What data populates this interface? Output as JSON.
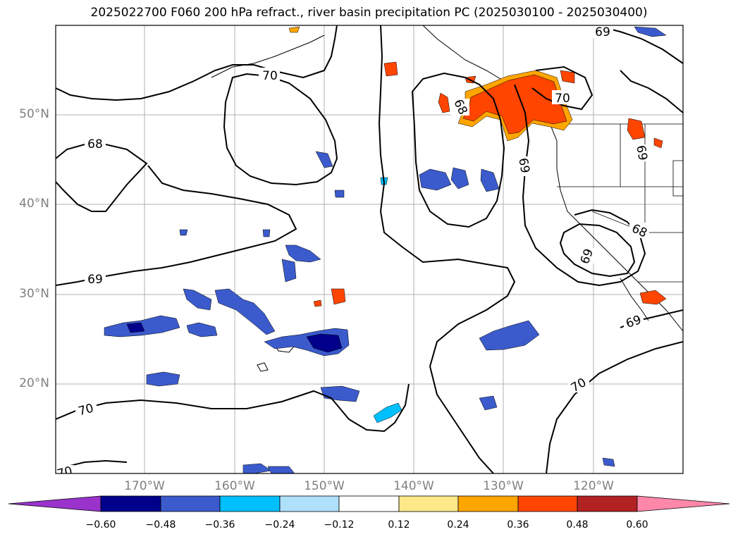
{
  "title": "2025022700 F060 200 hPa refract., river basin precipitation PC (2025030100 - 2025030400)",
  "map": {
    "lat_ticks": [
      {
        "value": 50,
        "label": "50°N"
      },
      {
        "value": 40,
        "label": "40°N"
      },
      {
        "value": 30,
        "label": "30°N"
      },
      {
        "value": 20,
        "label": "20°N"
      }
    ],
    "lon_ticks": [
      {
        "value": -170,
        "label": "170°W"
      },
      {
        "value": -160,
        "label": "160°W"
      },
      {
        "value": -150,
        "label": "150°W"
      },
      {
        "value": -140,
        "label": "140°W"
      },
      {
        "value": -130,
        "label": "130°W"
      },
      {
        "value": -120,
        "label": "120°W"
      }
    ],
    "extent": {
      "lon_min": -180,
      "lon_max": -110,
      "lat_min": 10,
      "lat_max": 60
    },
    "contour_labels": [
      "70",
      "68",
      "69",
      "69",
      "68",
      "70",
      "69",
      "69",
      "68",
      "69",
      "69",
      "70",
      "70",
      "70"
    ],
    "grid": true
  },
  "colorbar": {
    "ticks": [
      "−0.60",
      "−0.48",
      "−0.36",
      "−0.24",
      "−0.12",
      "0.12",
      "0.24",
      "0.36",
      "0.48",
      "0.60"
    ],
    "colors": [
      "#9933cc",
      "#00008b",
      "#3b5bcc",
      "#00bfff",
      "#aee0fa",
      "#ffffff",
      "#ffe88a",
      "#ffa500",
      "#ff4500",
      "#b22222",
      "#ff88aa"
    ]
  }
}
